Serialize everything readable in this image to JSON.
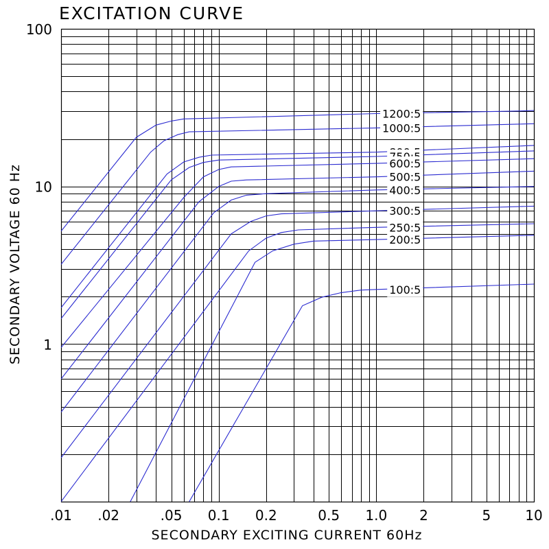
{
  "chart_data": {
    "type": "line",
    "title": "EXCITATION CURVE",
    "xlabel": "SECONDARY EXCITING CURRENT 60Hz",
    "ylabel": "SECONDARY VOLTAGE 60 Hz",
    "x_scale": "log",
    "y_scale": "log",
    "xlim": [
      0.01,
      10
    ],
    "ylim": [
      0.1,
      100
    ],
    "x_tick_labels": [
      {
        "value": 0.01,
        "label": ".01"
      },
      {
        "value": 0.02,
        "label": ".02"
      },
      {
        "value": 0.05,
        "label": ".05"
      },
      {
        "value": 0.1,
        "label": "0.1"
      },
      {
        "value": 0.2,
        "label": "0.2"
      },
      {
        "value": 0.5,
        "label": "0.5"
      },
      {
        "value": 1.0,
        "label": "1.0"
      },
      {
        "value": 2,
        "label": "2"
      },
      {
        "value": 5,
        "label": "5"
      },
      {
        "value": 10,
        "label": "10"
      }
    ],
    "y_tick_labels": [
      {
        "value": 100,
        "label": "100"
      },
      {
        "value": 10,
        "label": "10"
      },
      {
        "value": 1,
        "label": "1"
      }
    ],
    "grid": true,
    "series_color": "#2a2ad0",
    "series": [
      {
        "name": "1200:5",
        "x": [
          0.01,
          0.03,
          0.04,
          0.05,
          0.06,
          1.0,
          7.0,
          10
        ],
        "y": [
          5.2,
          20.5,
          24.5,
          26.0,
          26.8,
          29.0,
          30.0,
          30.3
        ]
      },
      {
        "name": "1000:5",
        "x": [
          0.01,
          0.037,
          0.045,
          0.055,
          0.065,
          1.0,
          10
        ],
        "y": [
          3.2,
          16.5,
          19.5,
          21.3,
          22.2,
          23.5,
          25.0
        ]
      },
      {
        "name": "800:5",
        "x": [
          0.01,
          0.047,
          0.06,
          0.075,
          0.09,
          1.0,
          10
        ],
        "y": [
          1.7,
          12.0,
          14.3,
          15.3,
          15.8,
          16.5,
          18.2
        ]
      },
      {
        "name": "750:5",
        "x": [
          0.01,
          0.05,
          0.065,
          0.08,
          0.1,
          1.0,
          10
        ],
        "y": [
          1.45,
          11.0,
          13.2,
          14.2,
          14.7,
          15.5,
          16.8
        ]
      },
      {
        "name": "600:5",
        "x": [
          0.01,
          0.06,
          0.08,
          0.1,
          0.12,
          1.0,
          10
        ],
        "y": [
          0.95,
          8.5,
          11.5,
          12.8,
          13.3,
          14.0,
          15.0
        ]
      },
      {
        "name": "500:5",
        "x": [
          0.01,
          0.075,
          0.1,
          0.12,
          0.15,
          1.0,
          10
        ],
        "y": [
          0.6,
          8.0,
          10.0,
          10.8,
          11.0,
          11.5,
          12.5
        ]
      },
      {
        "name": "400:5",
        "x": [
          0.01,
          0.093,
          0.12,
          0.15,
          0.2,
          1.0,
          10
        ],
        "y": [
          0.37,
          6.8,
          8.2,
          8.8,
          9.0,
          9.5,
          10.0
        ]
      },
      {
        "name": "300:5",
        "x": [
          0.01,
          0.12,
          0.16,
          0.2,
          0.25,
          1.0,
          10
        ],
        "y": [
          0.19,
          5.0,
          6.0,
          6.5,
          6.7,
          7.0,
          7.5
        ]
      },
      {
        "name": "250:5",
        "x": [
          0.01,
          0.155,
          0.2,
          0.25,
          0.32,
          1.0,
          10
        ],
        "y": [
          0.1,
          3.9,
          4.7,
          5.1,
          5.3,
          5.5,
          5.8
        ]
      },
      {
        "name": "200:5",
        "x": [
          0.0275,
          0.17,
          0.22,
          0.3,
          0.4,
          1.0,
          10
        ],
        "y": [
          0.1,
          3.3,
          3.9,
          4.3,
          4.5,
          4.6,
          4.9
        ]
      },
      {
        "name": "100:5",
        "x": [
          0.065,
          0.34,
          0.45,
          0.6,
          0.8,
          1.0,
          10
        ],
        "y": [
          0.1,
          1.75,
          1.98,
          2.12,
          2.2,
          2.22,
          2.4
        ]
      }
    ]
  }
}
